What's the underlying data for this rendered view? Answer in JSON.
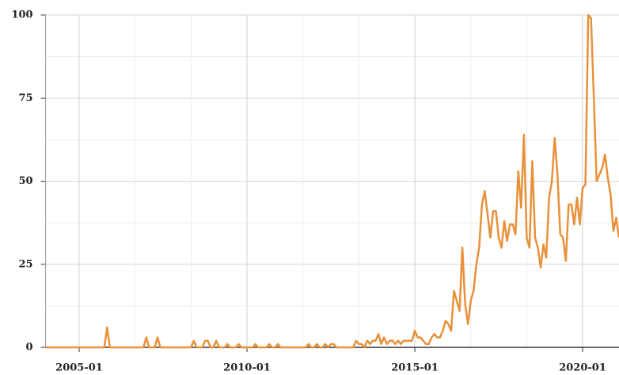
{
  "chart_data": {
    "type": "line",
    "color": "#e8913a",
    "grid": true,
    "x": [
      "2004-01",
      "2004-02",
      "2004-03",
      "2004-04",
      "2004-05",
      "2004-06",
      "2004-07",
      "2004-08",
      "2004-09",
      "2004-10",
      "2004-11",
      "2004-12",
      "2005-01",
      "2005-02",
      "2005-03",
      "2005-04",
      "2005-05",
      "2005-06",
      "2005-07",
      "2005-08",
      "2005-09",
      "2005-10",
      "2005-11",
      "2005-12",
      "2006-01",
      "2006-02",
      "2006-03",
      "2006-04",
      "2006-05",
      "2006-06",
      "2006-07",
      "2006-08",
      "2006-09",
      "2006-10",
      "2006-11",
      "2006-12",
      "2007-01",
      "2007-02",
      "2007-03",
      "2007-04",
      "2007-05",
      "2007-06",
      "2007-07",
      "2007-08",
      "2007-09",
      "2007-10",
      "2007-11",
      "2007-12",
      "2008-01",
      "2008-02",
      "2008-03",
      "2008-04",
      "2008-05",
      "2008-06",
      "2008-07",
      "2008-08",
      "2008-09",
      "2008-10",
      "2008-11",
      "2008-12",
      "2009-01",
      "2009-02",
      "2009-03",
      "2009-04",
      "2009-05",
      "2009-06",
      "2009-07",
      "2009-08",
      "2009-09",
      "2009-10",
      "2009-11",
      "2009-12",
      "2010-01",
      "2010-02",
      "2010-03",
      "2010-04",
      "2010-05",
      "2010-06",
      "2010-07",
      "2010-08",
      "2010-09",
      "2010-10",
      "2010-11",
      "2010-12",
      "2011-01",
      "2011-02",
      "2011-03",
      "2011-04",
      "2011-05",
      "2011-06",
      "2011-07",
      "2011-08",
      "2011-09",
      "2011-10",
      "2011-11",
      "2011-12",
      "2012-01",
      "2012-02",
      "2012-03",
      "2012-04",
      "2012-05",
      "2012-06",
      "2012-07",
      "2012-08",
      "2012-09",
      "2012-10",
      "2012-11",
      "2012-12",
      "2013-01",
      "2013-02",
      "2013-03",
      "2013-04",
      "2013-05",
      "2013-06",
      "2013-07",
      "2013-08",
      "2013-09",
      "2013-10",
      "2013-11",
      "2013-12",
      "2014-01",
      "2014-02",
      "2014-03",
      "2014-04",
      "2014-05",
      "2014-06",
      "2014-07",
      "2014-08",
      "2014-09",
      "2014-10",
      "2014-11",
      "2014-12",
      "2015-01",
      "2015-02",
      "2015-03",
      "2015-04",
      "2015-05",
      "2015-06",
      "2015-07",
      "2015-08",
      "2015-09",
      "2015-10",
      "2015-11",
      "2015-12",
      "2016-01",
      "2016-02",
      "2016-03",
      "2016-04",
      "2016-05",
      "2016-06",
      "2016-07",
      "2016-08",
      "2016-09",
      "2016-10",
      "2016-11",
      "2016-12",
      "2017-01",
      "2017-02",
      "2017-03",
      "2017-04",
      "2017-05",
      "2017-06",
      "2017-07",
      "2017-08",
      "2017-09",
      "2017-10",
      "2017-11",
      "2017-12",
      "2018-01",
      "2018-02",
      "2018-03",
      "2018-04",
      "2018-05",
      "2018-06",
      "2018-07",
      "2018-08",
      "2018-09",
      "2018-10",
      "2018-11",
      "2018-12",
      "2019-01",
      "2019-02",
      "2019-03",
      "2019-04",
      "2019-05",
      "2019-06",
      "2019-07",
      "2019-08",
      "2019-09",
      "2019-10",
      "2019-11",
      "2019-12",
      "2020-01",
      "2020-02",
      "2020-03",
      "2020-04",
      "2020-05",
      "2020-06",
      "2020-07",
      "2020-08",
      "2020-09",
      "2020-10",
      "2020-11",
      "2020-12",
      "2021-01",
      "2021-02"
    ],
    "values": [
      0,
      0,
      0,
      0,
      0,
      0,
      0,
      0,
      0,
      0,
      0,
      0,
      0,
      0,
      0,
      0,
      0,
      0,
      0,
      0,
      0,
      0,
      6,
      0,
      0,
      0,
      0,
      0,
      0,
      0,
      0,
      0,
      0,
      0,
      0,
      0,
      3,
      0,
      0,
      0,
      3,
      0,
      0,
      0,
      0,
      0,
      0,
      0,
      0,
      0,
      0,
      0,
      0,
      2,
      0,
      0,
      0,
      2,
      2,
      0,
      0,
      2,
      0,
      0,
      0,
      1,
      0,
      0,
      0,
      1,
      0,
      0,
      0,
      0,
      0,
      1,
      0,
      0,
      0,
      0,
      1,
      0,
      0,
      1,
      0,
      0,
      0,
      0,
      0,
      0,
      0,
      0,
      0,
      0,
      1,
      0,
      0,
      1,
      0,
      0,
      1,
      0,
      1,
      1,
      0,
      0,
      0,
      0,
      0,
      0,
      0,
      2,
      1,
      1,
      0,
      2,
      1,
      2,
      2,
      4,
      1,
      3,
      1,
      2,
      2,
      1,
      2,
      1,
      2,
      2,
      2,
      2,
      5,
      3,
      3,
      2,
      1,
      1,
      3,
      4,
      3,
      3,
      5,
      8,
      7,
      5,
      17,
      14,
      11,
      30,
      13,
      7,
      14,
      17,
      25,
      30,
      43,
      47,
      40,
      33,
      41,
      41,
      33,
      30,
      38,
      32,
      37,
      37,
      34,
      53,
      42,
      64,
      33,
      30,
      56,
      33,
      30,
      24,
      31,
      27,
      45,
      50,
      63,
      52,
      34,
      33,
      26,
      43,
      43,
      37,
      45,
      37,
      48,
      49,
      100,
      99,
      75,
      50,
      52,
      54,
      58,
      51,
      46,
      35,
      39,
      33
    ],
    "xlim": [
      "2004-01",
      "2021-02"
    ],
    "xticks": [
      "2005-01",
      "2010-01",
      "2015-01",
      "2020-01"
    ],
    "x_minor_ticks": [
      "2006-09",
      "2008-05",
      "2011-09",
      "2013-05",
      "2016-09",
      "2018-05"
    ],
    "ylim": [
      0,
      100
    ],
    "yticks": [
      0,
      25,
      50,
      75,
      100
    ],
    "y_minor_ticks": [
      12.5,
      37.5,
      62.5,
      87.5
    ]
  }
}
